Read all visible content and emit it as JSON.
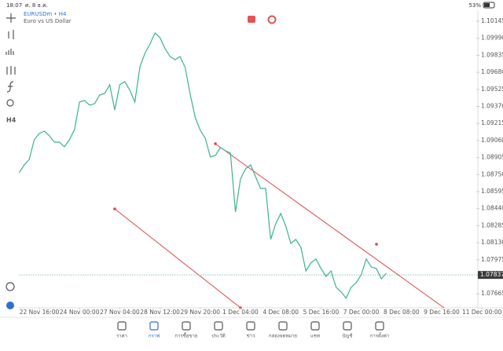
{
  "status_bar": {
    "time": "18:07",
    "date": "ศ. 8 ธ.ค.",
    "battery": "53%"
  },
  "symbol": {
    "name": "EURUSDm • H4",
    "description": "Euro vs US Dollar"
  },
  "toolbar": {
    "timeframe": "H4"
  },
  "chart_data": {
    "type": "line",
    "color": "#3cb38a",
    "grid": false,
    "values": [
      1.08767,
      1.08838,
      1.08888,
      1.09067,
      1.09124,
      1.09145,
      1.09103,
      1.09045,
      1.09045,
      1.09003,
      1.09067,
      1.0916,
      1.0941,
      1.09424,
      1.09381,
      1.09395,
      1.09474,
      1.09488,
      1.09567,
      1.09338,
      1.09567,
      1.09595,
      1.09517,
      1.0941,
      1.09731,
      1.09852,
      1.09938,
      1.10038,
      1.09995,
      1.09895,
      1.09824,
      1.09795,
      1.09824,
      1.09724,
      1.09481,
      1.09267,
      1.09153,
      1.09081,
      1.0891,
      1.08924,
      1.08995,
      1.08967,
      1.08945,
      1.0841,
      1.0871,
      1.08803,
      1.08838,
      1.08731,
      1.08624,
      1.08624,
      1.0816,
      1.08303,
      1.08396,
      1.08281,
      1.08124,
      1.0816,
      1.08089,
      1.07874,
      1.07946,
      1.07982,
      1.07896,
      1.07824,
      1.07874,
      1.07725,
      1.07682,
      1.07625,
      1.07725,
      1.07767,
      1.07839,
      1.07982,
      1.0791,
      1.07896,
      1.07803,
      1.07853
    ],
    "xlim": [
      0,
      92
    ],
    "xticks": [
      {
        "value": 4,
        "label": "22 Nov 16:00"
      },
      {
        "value": 12,
        "label": "24 Nov 00:00"
      },
      {
        "value": 20,
        "label": "27 Nov 04:00"
      },
      {
        "value": 28,
        "label": "28 Nov 12:00"
      },
      {
        "value": 36,
        "label": "29 Nov 20:00"
      },
      {
        "value": 44,
        "label": "1 Dec 04:00"
      },
      {
        "value": 52,
        "label": "4 Dec 08:00"
      },
      {
        "value": 60,
        "label": "5 Dec 16:00"
      },
      {
        "value": 68,
        "label": "7 Dec 00:00"
      },
      {
        "value": 76,
        "label": "8 Dec 08:00"
      },
      {
        "value": 84,
        "label": "9 Dec 16:00"
      },
      {
        "value": 92,
        "label": "11 Dec 00:00"
      }
    ],
    "ylim": [
      1.07538,
      1.10238
    ],
    "yticks": [
      1.10145,
      {
        "value": 1.0999,
        "label": "1.09990"
      },
      1.09835,
      {
        "value": 1.0968,
        "label": "1.09680"
      },
      1.09525,
      {
        "value": 1.0937,
        "label": "1.09370"
      },
      1.09215,
      {
        "value": 1.0906,
        "label": "1.09060"
      },
      1.08905,
      {
        "value": 1.0875,
        "label": "1.08750"
      },
      1.08595,
      {
        "value": 1.0844,
        "label": "1.08440"
      },
      1.08285,
      {
        "value": 1.0813,
        "label": "1.08130"
      },
      1.07975,
      1.07665
    ],
    "current_price": 1.07837
  },
  "tabs": [
    {
      "label": "ราคา",
      "active": false
    },
    {
      "label": "กราฟ",
      "active": true
    },
    {
      "label": "การซื้อขาย",
      "active": false
    },
    {
      "label": "ประวัติ",
      "active": false
    },
    {
      "label": "ข่าว",
      "active": false
    },
    {
      "label": "กล่องจดหมาย",
      "active": false
    },
    {
      "label": "แชท",
      "active": false
    },
    {
      "label": "บัญชี",
      "active": false
    },
    {
      "label": "การตั้งค่า",
      "active": false
    }
  ]
}
